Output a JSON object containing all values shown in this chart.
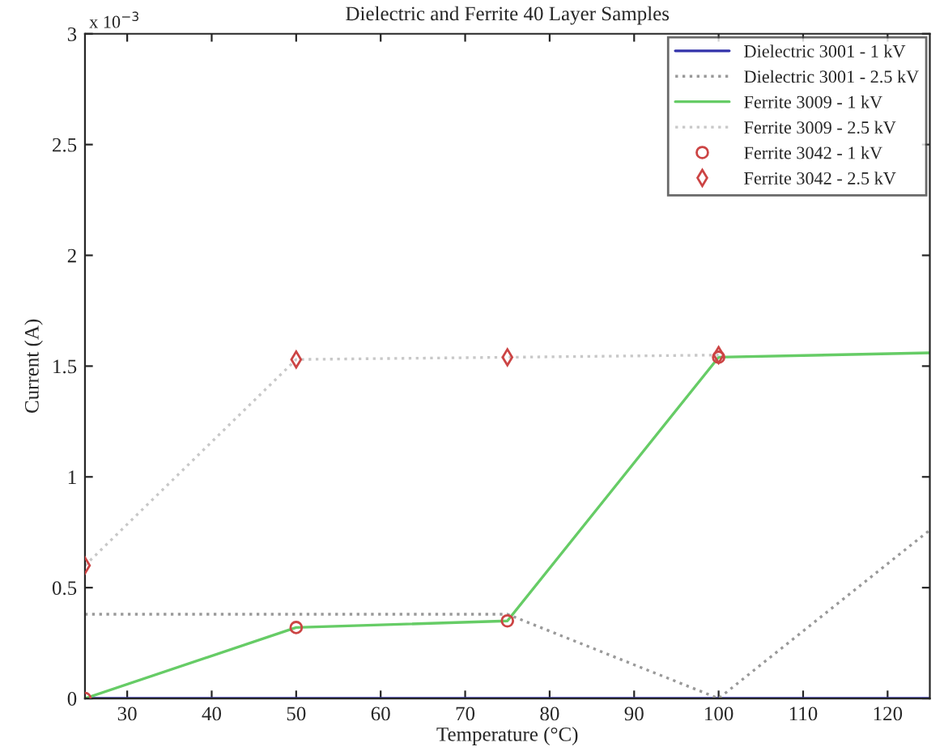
{
  "chart_data": {
    "type": "line",
    "title": "Dielectric and Ferrite 40 Layer Samples",
    "xlabel": "Temperature (°C)",
    "ylabel": "Current (A)",
    "x": [
      25,
      50,
      75,
      100,
      125
    ],
    "series": [
      {
        "name": "Dielectric 3001 - 1 kV",
        "color": "#3333aa",
        "line_style": "solid",
        "marker": "none",
        "values": [
          0,
          0,
          0,
          0,
          0
        ]
      },
      {
        "name": "Dielectric 3001 - 2.5 kV",
        "color": "#999999",
        "line_style": "dotted",
        "marker": "none",
        "values": [
          0.38,
          0.38,
          0.38,
          0,
          0.76
        ]
      },
      {
        "name": "Ferrite 3009 - 1 kV",
        "color": "#66cc66",
        "line_style": "solid",
        "marker": "none",
        "values": [
          0,
          0.32,
          0.35,
          1.54,
          1.56
        ]
      },
      {
        "name": "Ferrite 3009 - 2.5 kV",
        "color": "#c8c8c8",
        "line_style": "dotted",
        "marker": "none",
        "values": [
          0.6,
          1.53,
          1.54,
          1.55,
          null
        ]
      },
      {
        "name": "Ferrite 3042 - 1 kV",
        "type": "scatter",
        "color": "#cc4444",
        "marker": "circle",
        "values": [
          0,
          0.32,
          0.35,
          1.54,
          null
        ]
      },
      {
        "name": "Ferrite 3042 - 2.5 kV",
        "type": "scatter",
        "color": "#cc4444",
        "marker": "diamond",
        "values": [
          0.6,
          1.53,
          1.54,
          1.55,
          null
        ]
      }
    ],
    "xlim": [
      25,
      125
    ],
    "xticks": [
      30,
      40,
      50,
      60,
      70,
      80,
      90,
      100,
      110,
      120
    ],
    "ylim": [
      0,
      3
    ],
    "yticks": [
      0,
      0.5,
      1,
      1.5,
      2,
      2.5,
      3
    ],
    "annotations": [
      "x 10$^{−3}$"
    ],
    "grid": false,
    "legend": "top right"
  }
}
